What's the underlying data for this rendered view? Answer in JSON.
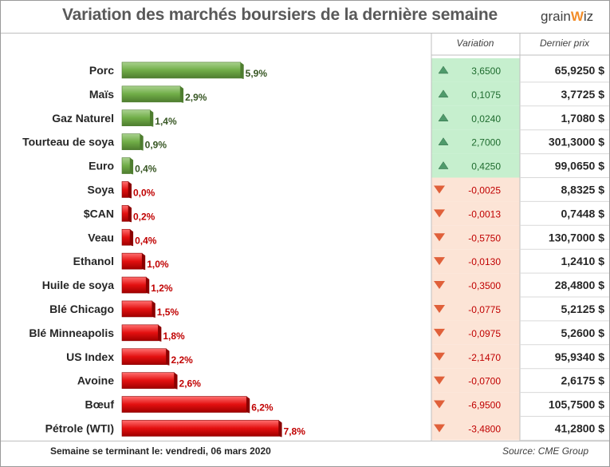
{
  "title": "Variation des marchés boursiers de la dernière semaine",
  "logo": {
    "left": "grain",
    "right": "iz"
  },
  "headers": {
    "variation": "Variation",
    "last_price": "Dernier prix"
  },
  "colors": {
    "up_bar": "#70ad47",
    "down_bar": "#e31010",
    "up_label": "#375623",
    "down_label": "#c00000",
    "up_bg": "#c6efce",
    "down_bg": "#fce4d6",
    "up_arrow": "#4f9a6b",
    "down_arrow": "#e0603a"
  },
  "chart_data": {
    "type": "bar",
    "orientation": "horizontal",
    "title": "Variation des marchés boursiers de la dernière semaine",
    "categories": [
      "Porc",
      "Maïs",
      "Gaz Naturel",
      "Tourteau de soya",
      "Euro",
      "Soya",
      "$CAN",
      "Veau",
      "Ethanol",
      "Huile de soya",
      "Blé Chicago",
      "Blé Minneapolis",
      "US Index",
      "Avoine",
      "Bœuf",
      "Pétrole (WTI)"
    ],
    "values": [
      5.9,
      2.9,
      1.4,
      0.9,
      0.4,
      0.0,
      0.2,
      0.4,
      1.0,
      1.2,
      1.5,
      1.8,
      2.2,
      2.6,
      6.2,
      7.8
    ],
    "value_labels": [
      "5,9%",
      "2,9%",
      "1,4%",
      "0,9%",
      "0,4%",
      "0,0%",
      "0,2%",
      "0,4%",
      "1,0%",
      "1,2%",
      "1,5%",
      "1,8%",
      "2,2%",
      "2,6%",
      "6,2%",
      "7,8%"
    ],
    "direction": [
      "up",
      "up",
      "up",
      "up",
      "up",
      "down",
      "down",
      "down",
      "down",
      "down",
      "down",
      "down",
      "down",
      "down",
      "down",
      "down"
    ],
    "variation": [
      "3,6500",
      "0,1075",
      "0,0240",
      "2,7000",
      "0,4250",
      "-0,0025",
      "-0,0013",
      "-0,5750",
      "-0,0130",
      "-0,3500",
      "-0,0775",
      "-0,0975",
      "-2,1470",
      "-0,0700",
      "-6,9500",
      "-3,4800"
    ],
    "last_price": [
      "65,9250 $",
      "3,7725 $",
      "1,7080 $",
      "301,3000 $",
      "99,0650 $",
      "8,8325 $",
      "0,7448 $",
      "130,7000 $",
      "1,2410 $",
      "28,4800 $",
      "5,2125 $",
      "5,2600 $",
      "95,9340 $",
      "2,6175 $",
      "105,7500 $",
      "41,2800 $"
    ],
    "xlim": [
      0,
      7.8
    ]
  },
  "footer": {
    "week_ending": "Semaine se terminant le:  vendredi, 06 mars 2020",
    "source": "Source: CME Group"
  }
}
